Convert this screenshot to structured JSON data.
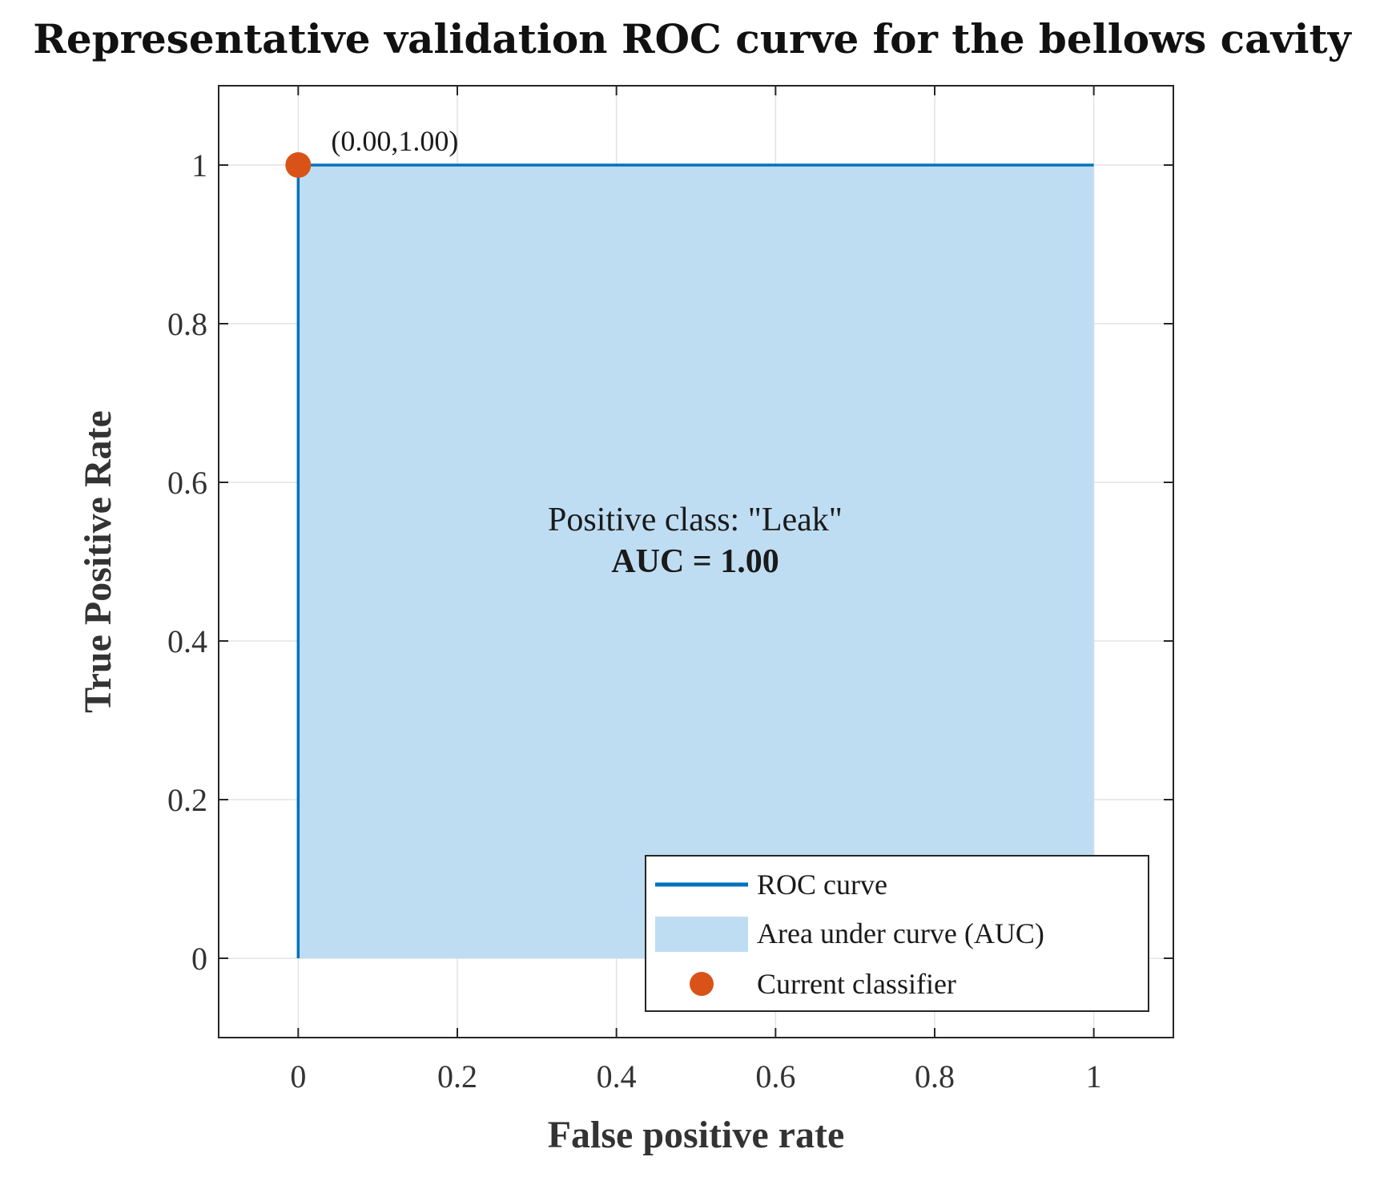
{
  "chart_data": {
    "type": "area",
    "title": "Representative validation ROC curve for the bellows cavity",
    "xlabel": "False positive rate",
    "ylabel": "True Positive Rate",
    "xlim": [
      -0.1,
      1.1
    ],
    "ylim": [
      -0.1,
      1.1
    ],
    "xticks": [
      0,
      0.2,
      0.4,
      0.6,
      0.8,
      1
    ],
    "xtick_labels": [
      "0",
      "0.2",
      "0.4",
      "0.6",
      "0.8",
      "1"
    ],
    "yticks": [
      0,
      0.2,
      0.4,
      0.6,
      0.8,
      1
    ],
    "ytick_labels": [
      "0",
      "0.2",
      "0.4",
      "0.6",
      "0.8",
      "1"
    ],
    "grid": true,
    "series": [
      {
        "name": "ROC curve",
        "kind": "line",
        "color": "#0072BD",
        "x": [
          0,
          0,
          1
        ],
        "y": [
          0,
          1,
          1
        ]
      },
      {
        "name": "Area under curve (AUC)",
        "kind": "area",
        "color": "#BFDDF2",
        "x": [
          0,
          0,
          1,
          1
        ],
        "y": [
          0,
          1,
          1,
          0
        ]
      },
      {
        "name": "Current classifier",
        "kind": "scatter",
        "color": "#D95319",
        "x": [
          0
        ],
        "y": [
          1
        ]
      }
    ],
    "point_label": "(0.00,1.00)",
    "annotation_line1": "Positive class: \"Leak\"",
    "annotation_line2": "AUC = 1.00",
    "legend_position": "bottom-right",
    "legend": [
      "ROC curve",
      "Area under curve (AUC)",
      "Current classifier"
    ]
  }
}
